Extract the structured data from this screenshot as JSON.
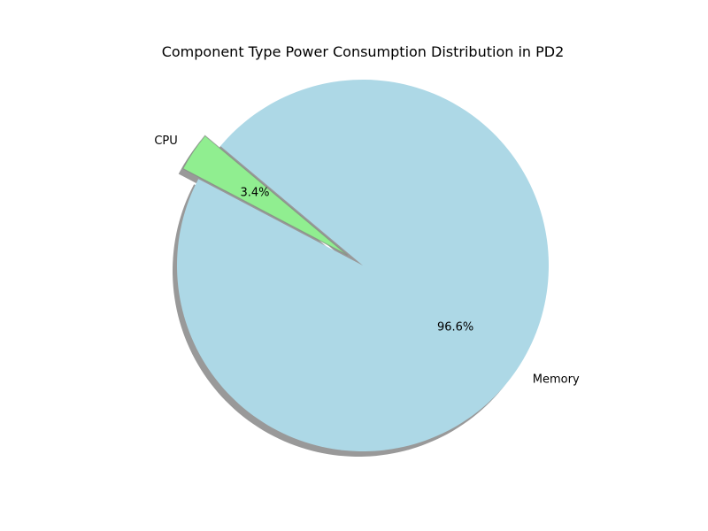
{
  "chart_data": {
    "type": "pie",
    "title": "Component Type Power Consumption Distribution in PD2",
    "slices": [
      {
        "label": "CPU",
        "value": 3.4,
        "pct_label": "3.4%",
        "color": "#90EE90",
        "exploded": true
      },
      {
        "label": "Memory",
        "value": 96.6,
        "pct_label": "96.6%",
        "color": "#ADD8E6",
        "exploded": false
      }
    ],
    "shadow": true,
    "legend": "none"
  }
}
